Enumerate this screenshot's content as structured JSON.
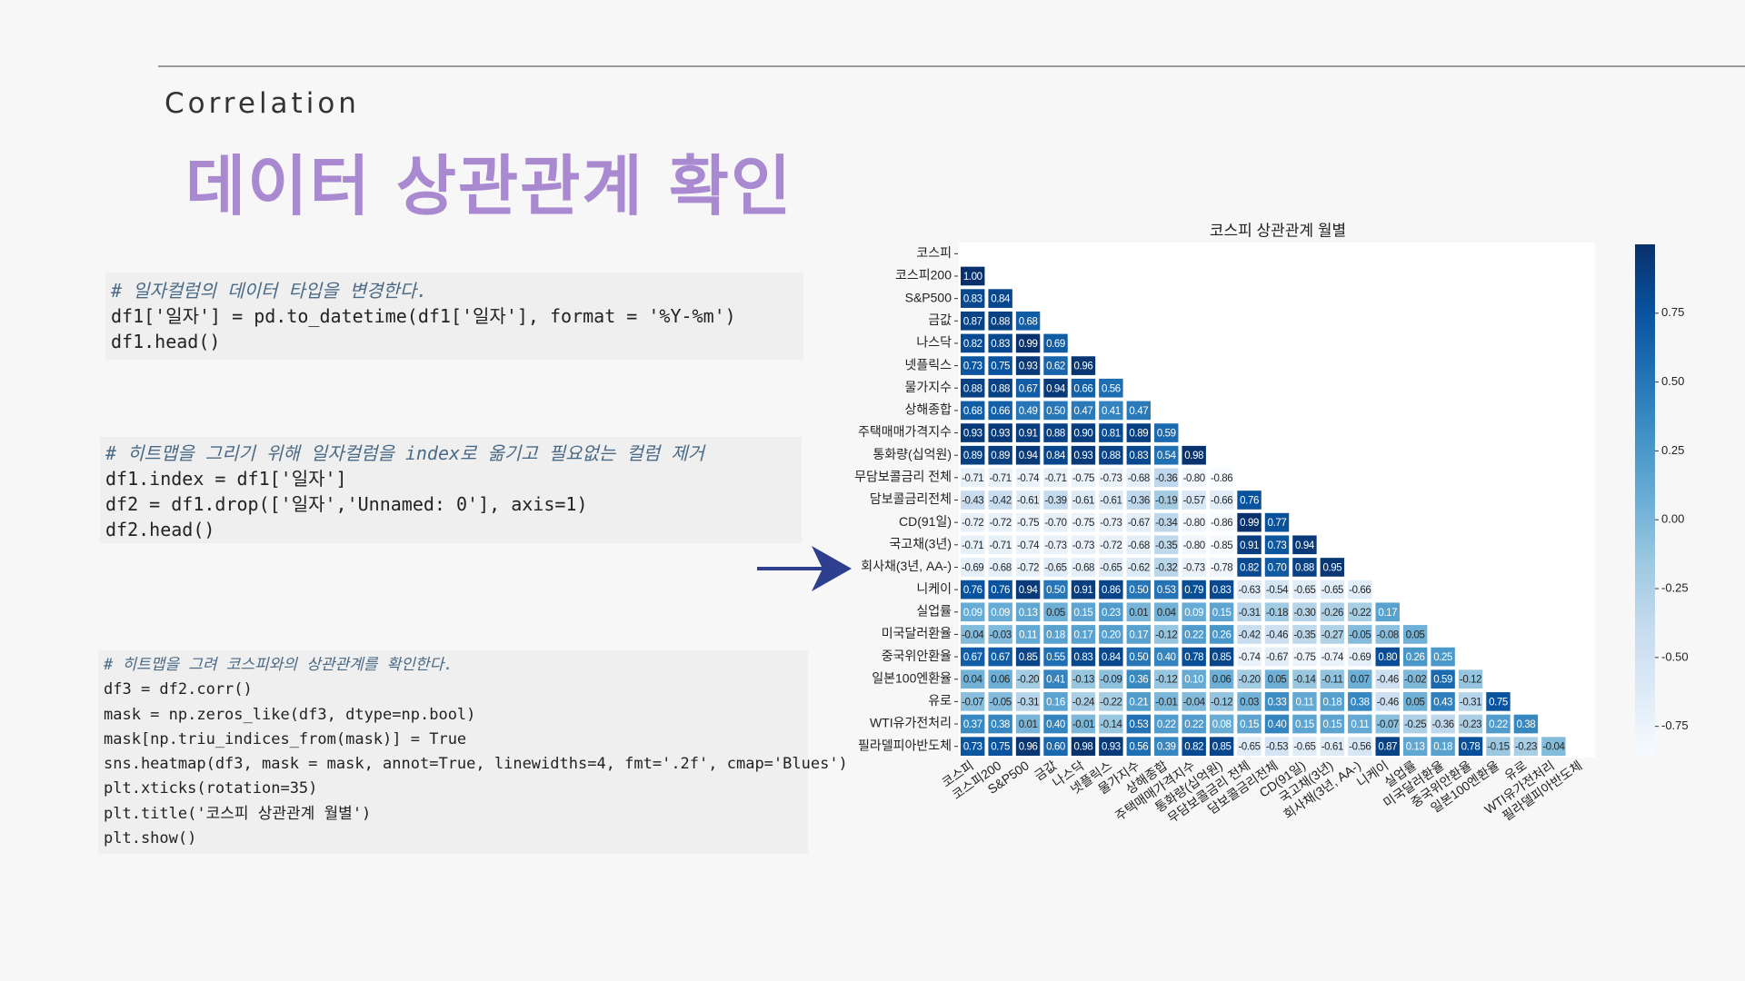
{
  "header": {
    "subtitle": "Correlation",
    "title": "데이터 상관관계 확인"
  },
  "code_blocks": [
    {
      "lines": [
        "# 일자컬럼의 데이터 타입을 변경한다.",
        "df1['일자'] = pd.to_datetime(df1['일자'], format = '%Y-%m')",
        "df1.head()"
      ]
    },
    {
      "lines": [
        "# 히트맵을 그리기 위해 일자컬럼을 index로 옮기고 필요없는 컬럼 제거",
        "df1.index = df1['일자']",
        "df2 = df1.drop(['일자','Unnamed: 0'], axis=1)",
        "df2.head()"
      ]
    },
    {
      "lines": [
        "# 히트맵을 그려 코스피와의 상관관계를 확인한다.",
        "df3 = df2.corr()",
        "mask = np.zeros_like(df3, dtype=np.bool)",
        "mask[np.triu_indices_from(mask)] = True",
        "sns.heatmap(df3, mask = mask, annot=True, linewidths=4, fmt='.2f', cmap='Blues')",
        "plt.xticks(rotation=35)",
        "plt.title('코스피 상관관계 월별')",
        "plt.show()"
      ]
    }
  ],
  "chart_data": {
    "type": "heatmap",
    "title": "코스피 상관관계 월별",
    "categories": [
      "코스피",
      "코스피200",
      "S&P500",
      "금값",
      "나스닥",
      "넷플릭스",
      "물가지수",
      "상해종합",
      "주택매매가격지수",
      "통화량(십억원)",
      "무담보콜금리 전체",
      "담보콜금리전체",
      "CD(91일)",
      "국고채(3년)",
      "회사채(3년, AA-)",
      "니케이",
      "실업률",
      "미국달러환율",
      "중국위안환율",
      "일본100엔환율",
      "유로",
      "WTI유가전처리",
      "필라델피아반도체"
    ],
    "values": [
      [],
      [
        1.0
      ],
      [
        0.83,
        0.84
      ],
      [
        0.87,
        0.88,
        0.68
      ],
      [
        0.82,
        0.83,
        0.99,
        0.69
      ],
      [
        0.73,
        0.75,
        0.93,
        0.62,
        0.96
      ],
      [
        0.88,
        0.88,
        0.67,
        0.94,
        0.66,
        0.56
      ],
      [
        0.68,
        0.66,
        0.49,
        0.5,
        0.47,
        0.41,
        0.47
      ],
      [
        0.93,
        0.93,
        0.91,
        0.88,
        0.9,
        0.81,
        0.89,
        0.59
      ],
      [
        0.89,
        0.89,
        0.94,
        0.84,
        0.93,
        0.88,
        0.83,
        0.54,
        0.98
      ],
      [
        -0.71,
        -0.71,
        -0.74,
        -0.71,
        -0.75,
        -0.73,
        -0.68,
        -0.36,
        -0.8,
        -0.86
      ],
      [
        -0.43,
        -0.42,
        -0.61,
        -0.39,
        -0.61,
        -0.61,
        -0.36,
        -0.19,
        -0.57,
        -0.66,
        0.76
      ],
      [
        -0.72,
        -0.72,
        -0.75,
        -0.7,
        -0.75,
        -0.73,
        -0.67,
        -0.34,
        -0.8,
        -0.86,
        0.99,
        0.77
      ],
      [
        -0.71,
        -0.71,
        -0.74,
        -0.73,
        -0.73,
        -0.72,
        -0.68,
        -0.35,
        -0.8,
        -0.85,
        0.91,
        0.73,
        0.94
      ],
      [
        -0.69,
        -0.68,
        -0.72,
        -0.65,
        -0.68,
        -0.65,
        -0.62,
        -0.32,
        -0.73,
        -0.78,
        0.82,
        0.7,
        0.88,
        0.95
      ],
      [
        0.76,
        0.76,
        0.94,
        0.5,
        0.91,
        0.86,
        0.5,
        0.53,
        0.79,
        0.83,
        -0.63,
        -0.54,
        -0.65,
        -0.65,
        -0.66
      ],
      [
        0.09,
        0.09,
        0.13,
        0.05,
        0.15,
        0.23,
        0.01,
        0.04,
        0.09,
        0.15,
        -0.31,
        -0.18,
        -0.3,
        -0.26,
        -0.22,
        0.17
      ],
      [
        -0.04,
        -0.03,
        0.11,
        0.18,
        0.17,
        0.2,
        0.17,
        -0.12,
        0.22,
        0.26,
        -0.42,
        -0.46,
        -0.35,
        -0.27,
        -0.05,
        -0.08,
        0.05
      ],
      [
        0.67,
        0.67,
        0.85,
        0.55,
        0.83,
        0.84,
        0.5,
        0.4,
        0.78,
        0.85,
        -0.74,
        -0.67,
        -0.75,
        -0.74,
        -0.69,
        0.8,
        0.26,
        0.25
      ],
      [
        0.04,
        0.06,
        -0.2,
        0.41,
        -0.13,
        -0.09,
        0.36,
        -0.12,
        0.1,
        0.06,
        -0.2,
        0.05,
        -0.14,
        -0.11,
        0.07,
        -0.46,
        -0.02,
        0.59,
        -0.12
      ],
      [
        -0.07,
        -0.05,
        -0.31,
        0.16,
        -0.24,
        -0.22,
        0.21,
        -0.01,
        -0.04,
        -0.12,
        0.03,
        0.33,
        0.11,
        0.18,
        0.38,
        -0.46,
        0.05,
        0.43,
        -0.31,
        0.75
      ],
      [
        0.37,
        0.38,
        0.01,
        0.4,
        -0.01,
        -0.14,
        0.53,
        0.22,
        0.22,
        0.08,
        0.15,
        0.4,
        0.15,
        0.15,
        0.11,
        -0.07,
        -0.25,
        -0.36,
        -0.23,
        0.22,
        0.38
      ],
      [
        0.73,
        0.75,
        0.96,
        0.6,
        0.98,
        0.93,
        0.56,
        0.39,
        0.82,
        0.85,
        -0.65,
        -0.53,
        -0.65,
        -0.61,
        -0.56,
        0.87,
        0.13,
        0.18,
        0.78,
        -0.15,
        -0.23,
        -0.04
      ]
    ],
    "value_labels": [
      [],
      [
        "1.00"
      ],
      [
        "0.83",
        "0.84"
      ],
      [
        "0.87",
        "0.88",
        "0.68"
      ],
      [
        "0.82",
        "0.83",
        "0.99",
        "0.69"
      ],
      [
        "0.73",
        "0.75",
        "0.93",
        "0.62",
        "0.96"
      ],
      [
        "0.88",
        "0.88",
        "0.67",
        "0.94",
        "0.66",
        "0.56"
      ],
      [
        "0.68",
        "0.66",
        "0.49",
        "0.50",
        "0.47",
        "0.41",
        "0.47"
      ],
      [
        "0.93",
        "0.93",
        "0.91",
        "0.88",
        "0.90",
        "0.81",
        "0.89",
        "0.59"
      ],
      [
        "0.89",
        "0.89",
        "0.94",
        "0.84",
        "0.93",
        "0.88",
        "0.83",
        "0.54",
        "0.98"
      ],
      [
        "-0.71",
        "-0.71",
        "-0.74",
        "-0.71",
        "-0.75",
        "-0.73",
        "-0.68",
        "-0.36",
        "-0.80",
        "-0.86"
      ],
      [
        "-0.43",
        "-0.42",
        "-0.61",
        "-0.39",
        "-0.61",
        "-0.61",
        "-0.36",
        "-0.19",
        "-0.57",
        "-0.66",
        "0.76"
      ],
      [
        "-0.72",
        "-0.72",
        "-0.75",
        "-0.70",
        "-0.75",
        "-0.73",
        "-0.67",
        "-0.34",
        "-0.80",
        "-0.86",
        "0.99",
        "0.77"
      ],
      [
        "-0.71",
        "-0.71",
        "-0.74",
        "-0.73",
        "-0.73",
        "-0.72",
        "-0.68",
        "-0.35",
        "-0.80",
        "-0.85",
        "0.91",
        "0.73",
        "0.94"
      ],
      [
        "-0.69",
        "-0.68",
        "-0.72",
        "-0.65",
        "-0.68",
        "-0.65",
        "-0.62",
        "-0.32",
        "-0.73",
        "-0.78",
        "0.82",
        "0.70",
        "0.88",
        "0.95"
      ],
      [
        "0.76",
        "0.76",
        "0.94",
        "0.50",
        "0.91",
        "0.86",
        "0.50",
        "0.53",
        "0.79",
        "0.83",
        "-0.63",
        "-0.54",
        "-0.65",
        "-0.65",
        "-0.66"
      ],
      [
        "0.09",
        "0.09",
        "0.13",
        "0.05",
        "0.15",
        "0.23",
        "0.01",
        "0.04",
        "0.09",
        "0.15",
        "-0.31",
        "-0.18",
        "-0.30",
        "-0.26",
        "-0.22",
        "0.17"
      ],
      [
        "-0.04",
        "-0.03",
        "0.11",
        "0.18",
        "0.17",
        "0.20",
        "0.17",
        "-0.12",
        "0.22",
        "0.26",
        "-0.42",
        "-0.46",
        "-0.35",
        "-0.27",
        "-0.05",
        "-0.08",
        "0.05"
      ],
      [
        "0.67",
        "0.67",
        "0.85",
        "0.55",
        "0.83",
        "0.84",
        "0.50",
        "0.40",
        "0.78",
        "0.85",
        "-0.74",
        "-0.67",
        "-0.75",
        "-0.74",
        "-0.69",
        "0.80",
        "0.26",
        "0.25"
      ],
      [
        "0.04",
        "0.06",
        "-0.20",
        "0.41",
        "-0.13",
        "-0.09",
        "0.36",
        "-0.12",
        "0.10",
        "0.06",
        "-0.20",
        "0.05",
        "-0.14",
        "-0.11",
        "0.07",
        "-0.46",
        "-0.02",
        "0.59",
        "-0.12"
      ],
      [
        "-0.07",
        "-0.05",
        "-0.31",
        "0.16",
        "-0.24",
        "-0.22",
        "0.21",
        "-0.01",
        "-0.04",
        "-0.12",
        "0.03",
        "0.33",
        "0.11",
        "0.18",
        "0.38",
        "-0.46",
        "0.05",
        "0.43",
        "-0.31",
        "0.75"
      ],
      [
        "0.37",
        "0.38",
        "0.01",
        "0.40",
        "-0.01",
        "-0.14",
        "0.53",
        "0.22",
        "0.22",
        "0.08",
        "0.15",
        "0.40",
        "0.15",
        "0.15",
        "0.11",
        "-0.07",
        "-0.25",
        "-0.36",
        "-0.23",
        "0.22",
        "0.38"
      ],
      [
        "0.73",
        "0.75",
        "0.96",
        "0.60",
        "0.98",
        "0.93",
        "0.56",
        "0.39",
        "0.82",
        "0.85",
        "-0.65",
        "-0.53",
        "-0.65",
        "-0.61",
        "-0.56",
        "0.87",
        "0.13",
        "0.18",
        "0.78",
        "-0.15",
        "-0.23",
        "-0.04"
      ]
    ],
    "clim": [
      -0.86,
      1.0
    ],
    "cticks": [
      0.75,
      {
        "value": 0.5,
        "label": "0.50"
      },
      0.25,
      {
        "value": 0,
        "label": "0.00"
      },
      -0.25,
      {
        "value": -0.5,
        "label": "-0.50"
      },
      -0.75
    ],
    "colormap": [
      "#f7fbff",
      "#deebf7",
      "#c6dbef",
      "#9ecae1",
      "#6baed6",
      "#4292c6",
      "#2171b5",
      "#08519c",
      "#08306b"
    ],
    "x_label_rotation": 35
  }
}
